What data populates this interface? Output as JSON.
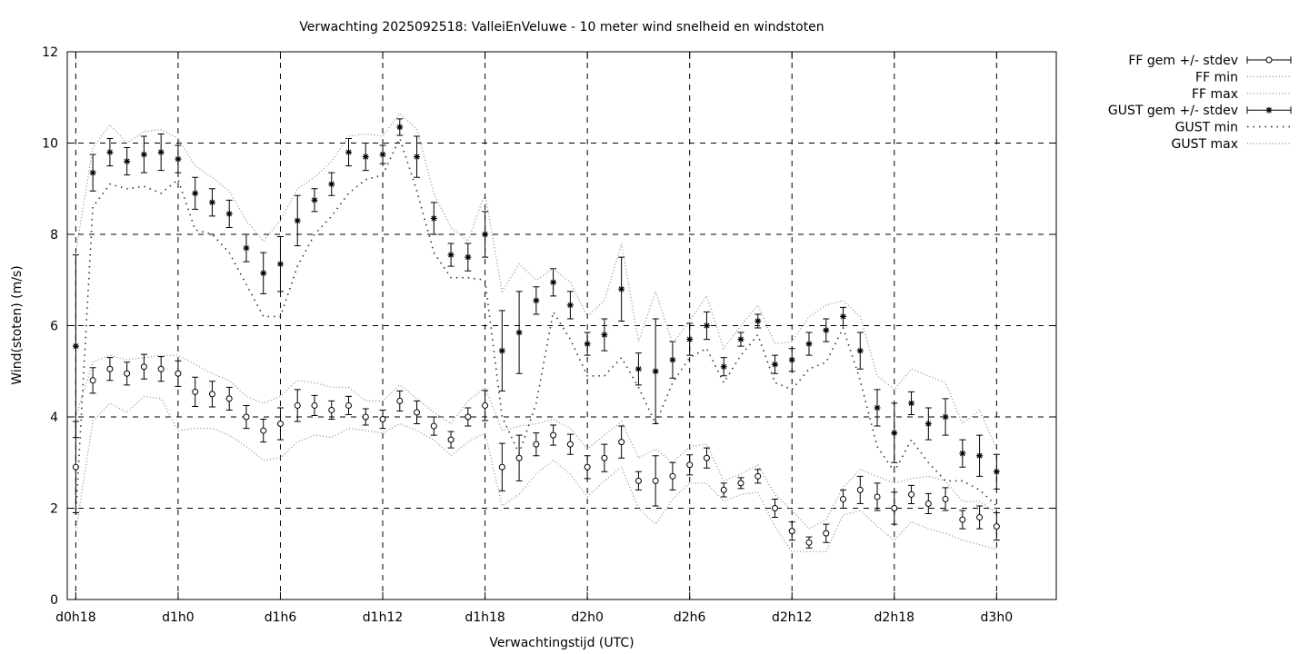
{
  "chart_data": {
    "type": "line",
    "title": "Verwachting 2025092518: ValleiEnVeluwe - 10 meter wind snelheid en windstoten",
    "xlabel": "Verwachtingstijd (UTC)",
    "ylabel": "Wind(stoten) (m/s)",
    "ylim": [
      0,
      12
    ],
    "yticks": [
      0,
      2,
      4,
      6,
      8,
      10,
      12
    ],
    "xlim": [
      17.5,
      75.5
    ],
    "xticks": [
      {
        "label": "d0h18",
        "value": 18
      },
      {
        "label": "d1h0",
        "value": 24
      },
      {
        "label": "d1h6",
        "value": 30
      },
      {
        "label": "d1h12",
        "value": 36
      },
      {
        "label": "d1h18",
        "value": 42
      },
      {
        "label": "d2h0",
        "value": 48
      },
      {
        "label": "d2h6",
        "value": 54
      },
      {
        "label": "d2h12",
        "value": 60
      },
      {
        "label": "d2h18",
        "value": 66
      },
      {
        "label": "d3h0",
        "value": 72
      }
    ],
    "grid": true,
    "legend_position": "outside-right",
    "x": [
      18,
      19,
      20,
      21,
      22,
      23,
      24,
      25,
      26,
      27,
      28,
      29,
      30,
      31,
      32,
      33,
      34,
      35,
      36,
      37,
      38,
      39,
      40,
      41,
      42,
      43,
      44,
      45,
      46,
      47,
      48,
      49,
      50,
      51,
      52,
      53,
      54,
      55,
      56,
      57,
      58,
      59,
      60,
      61,
      62,
      63,
      64,
      65,
      66,
      67,
      68,
      69,
      70,
      71,
      72
    ],
    "series": [
      {
        "name": "FF gem +/- stdev",
        "style": "errorbar-circle",
        "values": [
          2.9,
          4.8,
          5.05,
          4.95,
          5.1,
          5.05,
          4.95,
          4.55,
          4.5,
          4.4,
          4.0,
          3.7,
          3.85,
          4.25,
          4.25,
          4.15,
          4.25,
          4.0,
          3.95,
          4.35,
          4.1,
          3.8,
          3.5,
          4.0,
          4.25,
          2.9,
          3.1,
          3.4,
          3.6,
          3.4,
          2.9,
          3.1,
          3.45,
          2.6,
          2.6,
          2.7,
          2.95,
          3.1,
          2.4,
          2.55,
          2.7,
          2.0,
          1.5,
          1.25,
          1.45,
          2.2,
          2.4,
          2.25,
          2.0,
          2.3,
          2.1,
          2.2,
          1.75,
          1.8,
          1.6
        ],
        "stdev": [
          1.0,
          0.28,
          0.25,
          0.25,
          0.27,
          0.27,
          0.28,
          0.32,
          0.28,
          0.25,
          0.25,
          0.25,
          0.35,
          0.35,
          0.22,
          0.2,
          0.2,
          0.18,
          0.2,
          0.22,
          0.25,
          0.2,
          0.18,
          0.2,
          0.33,
          0.52,
          0.5,
          0.25,
          0.22,
          0.22,
          0.25,
          0.3,
          0.35,
          0.2,
          0.55,
          0.3,
          0.22,
          0.22,
          0.15,
          0.12,
          0.15,
          0.2,
          0.2,
          0.12,
          0.2,
          0.2,
          0.3,
          0.3,
          0.35,
          0.2,
          0.22,
          0.25,
          0.2,
          0.25,
          0.3
        ]
      },
      {
        "name": "FF min",
        "style": "dotted",
        "values": [
          1.5,
          3.9,
          4.3,
          4.1,
          4.45,
          4.4,
          3.7,
          3.75,
          3.75,
          3.6,
          3.35,
          3.05,
          3.1,
          3.45,
          3.6,
          3.55,
          3.75,
          3.7,
          3.65,
          3.85,
          3.7,
          3.5,
          3.15,
          3.45,
          3.65,
          2.05,
          2.3,
          2.75,
          3.05,
          2.75,
          2.25,
          2.6,
          2.9,
          2.0,
          1.65,
          2.2,
          2.55,
          2.55,
          2.15,
          2.3,
          2.35,
          1.6,
          1.05,
          1.05,
          1.05,
          1.85,
          1.95,
          1.6,
          1.3,
          1.7,
          1.55,
          1.45,
          1.3,
          1.2,
          1.1
        ]
      },
      {
        "name": "FF max",
        "style": "dotted",
        "values": [
          4.0,
          5.2,
          5.35,
          5.25,
          5.3,
          5.35,
          5.35,
          5.15,
          4.95,
          4.8,
          4.45,
          4.3,
          4.45,
          4.8,
          4.75,
          4.65,
          4.65,
          4.35,
          4.35,
          4.7,
          4.4,
          4.1,
          3.85,
          4.35,
          4.65,
          3.7,
          3.8,
          3.85,
          3.95,
          3.75,
          3.3,
          3.6,
          3.9,
          3.1,
          3.3,
          3.0,
          3.35,
          3.4,
          2.6,
          2.75,
          2.95,
          2.3,
          1.95,
          1.55,
          1.75,
          2.45,
          2.85,
          2.7,
          2.55,
          2.65,
          2.7,
          2.6,
          2.15,
          2.15,
          1.9
        ]
      },
      {
        "name": "GUST gem +/- stdev",
        "style": "errorbar-star",
        "values": [
          5.55,
          9.35,
          9.8,
          9.6,
          9.75,
          9.8,
          9.65,
          8.9,
          8.7,
          8.45,
          7.7,
          7.15,
          7.35,
          8.3,
          8.75,
          9.1,
          9.8,
          9.7,
          9.75,
          10.35,
          9.7,
          8.35,
          7.55,
          7.5,
          8.0,
          5.45,
          5.85,
          6.55,
          6.95,
          6.45,
          5.6,
          5.8,
          6.8,
          5.05,
          5.0,
          5.25,
          5.7,
          6.0,
          5.1,
          5.7,
          6.1,
          5.15,
          5.25,
          5.6,
          5.9,
          6.2,
          5.45,
          4.2,
          3.65,
          4.3,
          3.85,
          4.0,
          3.2,
          3.15,
          2.8
        ],
        "stdev": [
          2.0,
          0.4,
          0.3,
          0.3,
          0.4,
          0.4,
          0.3,
          0.35,
          0.3,
          0.3,
          0.3,
          0.45,
          0.6,
          0.55,
          0.25,
          0.25,
          0.3,
          0.3,
          0.2,
          0.18,
          0.45,
          0.35,
          0.25,
          0.3,
          0.5,
          0.88,
          0.9,
          0.3,
          0.3,
          0.3,
          0.25,
          0.35,
          0.7,
          0.35,
          1.15,
          0.4,
          0.35,
          0.3,
          0.2,
          0.15,
          0.15,
          0.2,
          0.25,
          0.25,
          0.25,
          0.2,
          0.4,
          0.4,
          0.65,
          0.25,
          0.35,
          0.4,
          0.3,
          0.45,
          0.38
        ]
      },
      {
        "name": "GUST min",
        "style": "dotted-sparse",
        "values": [
          1.85,
          8.6,
          9.1,
          9.0,
          9.05,
          8.9,
          9.2,
          8.1,
          8.0,
          7.6,
          6.9,
          6.2,
          6.2,
          7.3,
          8.0,
          8.4,
          8.9,
          9.2,
          9.3,
          10.1,
          8.95,
          7.6,
          7.05,
          7.05,
          7.0,
          4.0,
          3.2,
          4.3,
          6.3,
          5.7,
          4.9,
          4.9,
          5.3,
          4.65,
          3.85,
          4.75,
          5.3,
          5.5,
          4.75,
          5.35,
          5.8,
          4.75,
          4.6,
          5.05,
          5.2,
          5.95,
          4.8,
          3.35,
          2.8,
          3.5,
          3.0,
          2.6,
          2.6,
          2.4,
          2.05
        ]
      },
      {
        "name": "GUST max",
        "style": "dotted",
        "values": [
          7.6,
          9.9,
          10.4,
          10.0,
          10.25,
          10.3,
          10.1,
          9.5,
          9.25,
          8.95,
          8.3,
          7.85,
          8.3,
          9.0,
          9.25,
          9.6,
          10.15,
          10.2,
          10.15,
          10.65,
          10.3,
          8.9,
          8.15,
          7.85,
          8.9,
          6.75,
          7.35,
          7.0,
          7.25,
          6.95,
          6.2,
          6.55,
          7.8,
          5.65,
          6.75,
          5.6,
          6.1,
          6.65,
          5.5,
          6.0,
          6.45,
          5.6,
          5.65,
          6.2,
          6.45,
          6.55,
          6.2,
          4.9,
          4.6,
          5.05,
          4.9,
          4.75,
          3.85,
          4.15,
          3.3
        ]
      }
    ]
  }
}
